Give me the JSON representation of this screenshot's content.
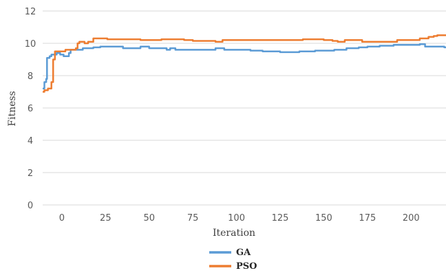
{
  "chart_data": {
    "type": "line",
    "xlabel": "Iteration",
    "ylabel": "Fitness",
    "xlim": [
      -11,
      220
    ],
    "ylim": [
      0,
      12
    ],
    "x_ticks": [
      0,
      25,
      50,
      75,
      100,
      125,
      150,
      175,
      200
    ],
    "y_ticks": [
      0,
      2,
      4,
      6,
      8,
      10,
      12
    ],
    "grid": "horizontal",
    "legend_position": "bottom",
    "series": [
      {
        "name": "GA",
        "color": "#5B9BD5",
        "step": true,
        "points": [
          [
            -11,
            7.2
          ],
          [
            -10,
            7.6
          ],
          [
            -9,
            7.8
          ],
          [
            -8.5,
            9.1
          ],
          [
            -7,
            9.2
          ],
          [
            -6,
            9.3
          ],
          [
            -4,
            9.3
          ],
          [
            -3,
            9.4
          ],
          [
            -1,
            9.3
          ],
          [
            1,
            9.2
          ],
          [
            3,
            9.2
          ],
          [
            4,
            9.4
          ],
          [
            5,
            9.6
          ],
          [
            9,
            9.6
          ],
          [
            10,
            9.6
          ],
          [
            12,
            9.7
          ],
          [
            18,
            9.75
          ],
          [
            22,
            9.8
          ],
          [
            32,
            9.8
          ],
          [
            35,
            9.7
          ],
          [
            45,
            9.8
          ],
          [
            50,
            9.7
          ],
          [
            55,
            9.7
          ],
          [
            60,
            9.6
          ],
          [
            62,
            9.7
          ],
          [
            65,
            9.6
          ],
          [
            75,
            9.6
          ],
          [
            85,
            9.6
          ],
          [
            88,
            9.7
          ],
          [
            93,
            9.6
          ],
          [
            100,
            9.6
          ],
          [
            108,
            9.55
          ],
          [
            115,
            9.5
          ],
          [
            125,
            9.45
          ],
          [
            136,
            9.5
          ],
          [
            145,
            9.55
          ],
          [
            156,
            9.6
          ],
          [
            163,
            9.7
          ],
          [
            170,
            9.75
          ],
          [
            175,
            9.8
          ],
          [
            182,
            9.85
          ],
          [
            190,
            9.9
          ],
          [
            205,
            9.95
          ],
          [
            208,
            9.8
          ],
          [
            215,
            9.8
          ],
          [
            219,
            9.75
          ],
          [
            220,
            9.75
          ]
        ]
      },
      {
        "name": "PSO",
        "color": "#ED7D31",
        "step": true,
        "points": [
          [
            -11,
            7.0
          ],
          [
            -10,
            7.1
          ],
          [
            -8,
            7.2
          ],
          [
            -6,
            7.6
          ],
          [
            -5,
            9.0
          ],
          [
            -4,
            9.5
          ],
          [
            -2,
            9.5
          ],
          [
            0,
            9.5
          ],
          [
            2,
            9.6
          ],
          [
            5,
            9.6
          ],
          [
            8,
            9.7
          ],
          [
            9,
            10.0
          ],
          [
            10,
            10.1
          ],
          [
            11,
            10.1
          ],
          [
            13,
            10.0
          ],
          [
            15,
            10.1
          ],
          [
            18,
            10.3
          ],
          [
            25,
            10.3
          ],
          [
            26,
            10.25
          ],
          [
            35,
            10.25
          ],
          [
            45,
            10.2
          ],
          [
            55,
            10.2
          ],
          [
            57,
            10.25
          ],
          [
            68,
            10.25
          ],
          [
            70,
            10.2
          ],
          [
            75,
            10.15
          ],
          [
            85,
            10.15
          ],
          [
            88,
            10.1
          ],
          [
            92,
            10.2
          ],
          [
            95,
            10.2
          ],
          [
            100,
            10.2
          ],
          [
            110,
            10.2
          ],
          [
            125,
            10.2
          ],
          [
            132,
            10.2
          ],
          [
            138,
            10.25
          ],
          [
            148,
            10.25
          ],
          [
            150,
            10.2
          ],
          [
            155,
            10.15
          ],
          [
            158,
            10.1
          ],
          [
            162,
            10.2
          ],
          [
            170,
            10.2
          ],
          [
            172,
            10.1
          ],
          [
            180,
            10.1
          ],
          [
            190,
            10.1
          ],
          [
            192,
            10.2
          ],
          [
            200,
            10.2
          ],
          [
            205,
            10.3
          ],
          [
            210,
            10.4
          ],
          [
            213,
            10.45
          ],
          [
            215,
            10.5
          ],
          [
            220,
            10.5
          ]
        ]
      }
    ]
  }
}
